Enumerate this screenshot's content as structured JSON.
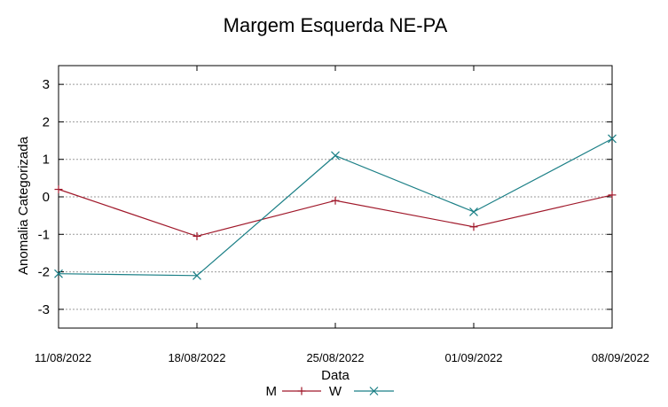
{
  "chart_data": {
    "type": "line",
    "title": "Margem Esquerda NE-PA",
    "xlabel": "Data",
    "ylabel": "Anomalia Categorizada",
    "categories": [
      "11/08/2022",
      "18/08/2022",
      "25/08/2022",
      "01/09/2022",
      "08/09/2022"
    ],
    "ylim": [
      -3.5,
      3.5
    ],
    "yticks": [
      -3,
      -2,
      -1,
      0,
      1,
      2,
      3
    ],
    "grid": true,
    "legend_position": "bottom-center",
    "series": [
      {
        "name": "M",
        "color": "#a0182a",
        "marker": "plus",
        "values": [
          0.2,
          -1.05,
          -0.1,
          -0.8,
          0.05
        ]
      },
      {
        "name": "W",
        "color": "#1b7f86",
        "marker": "cross",
        "values": [
          -2.05,
          -2.1,
          1.1,
          -0.4,
          1.55
        ]
      }
    ]
  }
}
